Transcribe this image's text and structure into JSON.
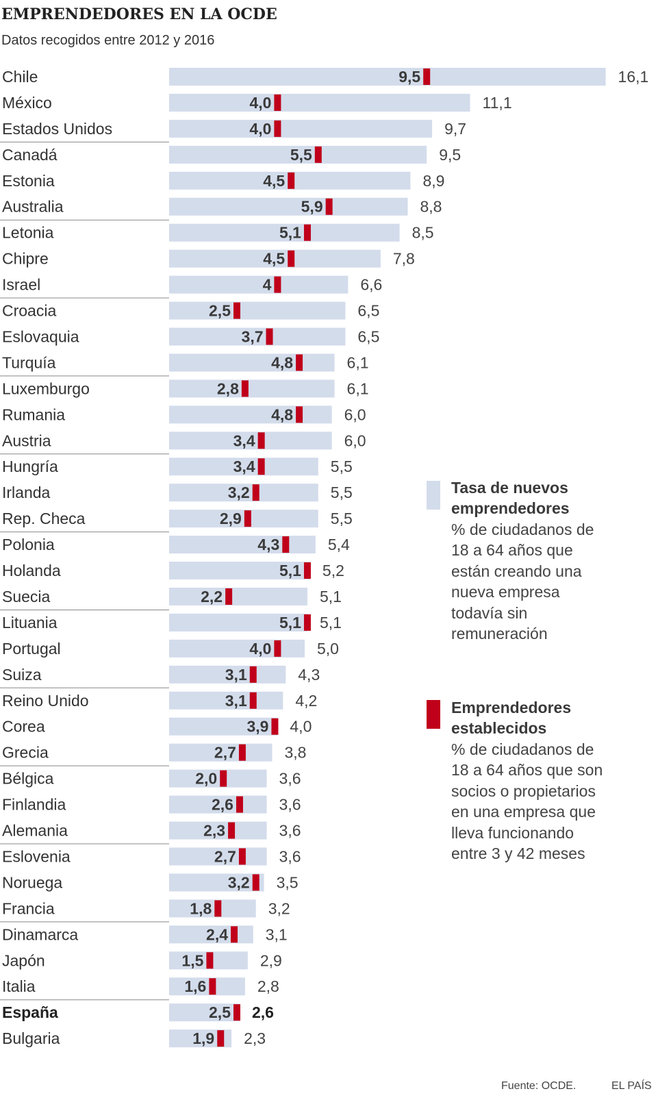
{
  "colors": {
    "new_bar": "#d3dceb",
    "established_mark": "#c0001a",
    "text": "#333333",
    "divider": "#888888"
  },
  "header": {
    "title": "EMPRENDEDORES EN LA OCDE",
    "subtitle": "Datos recogidos entre 2012 y 2016"
  },
  "legend": {
    "new": {
      "title_lines": [
        "Tasa de nuevos",
        "emprendedores"
      ],
      "desc_lines": [
        "% de ciudadanos de",
        "18 a 64 años que",
        "están creando una",
        "nueva empresa",
        "todavía sin",
        "remuneración"
      ]
    },
    "established": {
      "title_lines": [
        "Emprendedores",
        "establecidos"
      ],
      "desc_lines": [
        "% de ciudadanos de",
        "18 a 64 años que son",
        "socios o propietarios",
        "en una empresa que",
        "lleva funcionando",
        "entre 3 y 42 meses"
      ]
    }
  },
  "footer": {
    "source": "Fuente: OCDE.",
    "brand": "EL PAÍS"
  },
  "chart_data": {
    "type": "bar",
    "orientation": "horizontal",
    "title": "EMPRENDEDORES EN LA OCDE",
    "subtitle": "Datos recogidos entre 2012 y 2016",
    "xlim": [
      0,
      16.1
    ],
    "highlight": "España",
    "categories": [
      "Chile",
      "México",
      "Estados Unidos",
      "Canadá",
      "Estonia",
      "Australia",
      "Letonia",
      "Chipre",
      "Israel",
      "Croacia",
      "Eslovaquia",
      "Turquía",
      "Luxemburgo",
      "Rumania",
      "Austria",
      "Hungría",
      "Irlanda",
      "Rep. Checa",
      "Polonia",
      "Holanda",
      "Suecia",
      "Lituania",
      "Portugal",
      "Suiza",
      "Reino Unido",
      "Corea",
      "Grecia",
      "Bélgica",
      "Finlandia",
      "Alemania",
      "Eslovenia",
      "Noruega",
      "Francia",
      "Dinamarca",
      "Japón",
      "Italia",
      "España",
      "Bulgaria"
    ],
    "series": [
      {
        "name": "Tasa de nuevos emprendedores",
        "values": [
          16.1,
          11.1,
          9.7,
          9.5,
          8.9,
          8.8,
          8.5,
          7.8,
          6.6,
          6.5,
          6.5,
          6.1,
          6.1,
          6.0,
          6.0,
          5.5,
          5.5,
          5.5,
          5.4,
          5.2,
          5.1,
          5.1,
          5.0,
          4.3,
          4.2,
          4.0,
          3.8,
          3.6,
          3.6,
          3.6,
          3.6,
          3.5,
          3.2,
          3.1,
          2.9,
          2.8,
          2.6,
          2.3
        ],
        "labels": [
          "16,1",
          "11,1",
          "9,7",
          "9,5",
          "8,9",
          "8,8",
          "8,5",
          "7,8",
          "6,6",
          "6,5",
          "6,5",
          "6,1",
          "6,1",
          "6,0",
          "6,0",
          "5,5",
          "5,5",
          "5,5",
          "5,4",
          "5,2",
          "5,1",
          "5,1",
          "5,0",
          "4,3",
          "4,2",
          "4,0",
          "3,8",
          "3,6",
          "3,6",
          "3,6",
          "3,6",
          "3,5",
          "3,2",
          "3,1",
          "2,9",
          "2,8",
          "2,6",
          "2,3"
        ]
      },
      {
        "name": "Emprendedores establecidos",
        "values": [
          9.5,
          4.0,
          4.0,
          5.5,
          4.5,
          5.9,
          5.1,
          4.5,
          4.0,
          2.5,
          3.7,
          4.8,
          2.8,
          4.8,
          3.4,
          3.4,
          3.2,
          2.9,
          4.3,
          5.1,
          2.2,
          5.1,
          4.0,
          3.1,
          3.1,
          3.9,
          2.7,
          2.0,
          2.6,
          2.3,
          2.7,
          3.2,
          1.8,
          2.4,
          1.5,
          1.6,
          2.5,
          1.9
        ],
        "labels": [
          "9,5",
          "4,0",
          "4,0",
          "5,5",
          "4,5",
          "5,9",
          "5,1",
          "4,5",
          "4",
          "2,5",
          "3,7",
          "4,8",
          "2,8",
          "4,8",
          "3,4",
          "3,4",
          "3,2",
          "2,9",
          "4,3",
          "5,1",
          "2,2",
          "5,1",
          "4,0",
          "3,1",
          "3,1",
          "3,9",
          "2,7",
          "2,0",
          "2,6",
          "2,3",
          "2,7",
          "3,2",
          "1,8",
          "2,4",
          "1,5",
          "1,6",
          "2,5",
          "1,9"
        ]
      }
    ]
  }
}
